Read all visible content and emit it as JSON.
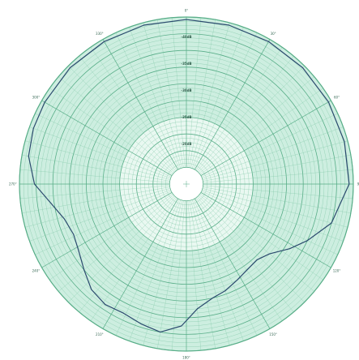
{
  "chart_data": {
    "type": "line",
    "coordinate_system": "polar",
    "theta_direction": "clockwise",
    "theta_zero": "top",
    "angle_tick_labels": [
      "0°",
      "30°",
      "60°",
      "90°",
      "120°",
      "150°",
      "180°",
      "210°",
      "240°",
      "270°",
      "300°",
      "330°"
    ],
    "radial_tick_labels": [
      "-40dB",
      "-35dB",
      "-30dB",
      "-25dB",
      "-20dB"
    ],
    "r_range": [
      0,
      1
    ],
    "grid": true,
    "colors": {
      "background_outer": "#cdeee0",
      "background_inner": "#e9f8f1",
      "grid": "#7fc7a6",
      "grid_major": "#57ad87",
      "trace": "#2b4a6e",
      "center": "#ffffff"
    },
    "series": [
      {
        "theta": [
          0,
          15,
          30,
          45,
          60,
          75,
          90,
          105,
          115,
          122,
          130,
          137,
          145,
          152,
          160,
          167,
          175,
          182,
          190,
          198,
          206,
          214,
          222,
          230,
          238,
          246,
          254,
          262,
          270,
          280,
          290,
          300,
          315,
          330,
          345,
          360
        ],
        "r": [
          0.985,
          0.985,
          0.985,
          0.985,
          0.983,
          0.98,
          0.975,
          0.9,
          0.8,
          0.73,
          0.65,
          0.62,
          0.63,
          0.65,
          0.68,
          0.7,
          0.75,
          0.85,
          0.9,
          0.88,
          0.86,
          0.87,
          0.85,
          0.8,
          0.76,
          0.74,
          0.76,
          0.82,
          0.91,
          0.96,
          0.975,
          0.98,
          0.985,
          0.985,
          0.985,
          0.985
        ]
      }
    ]
  }
}
